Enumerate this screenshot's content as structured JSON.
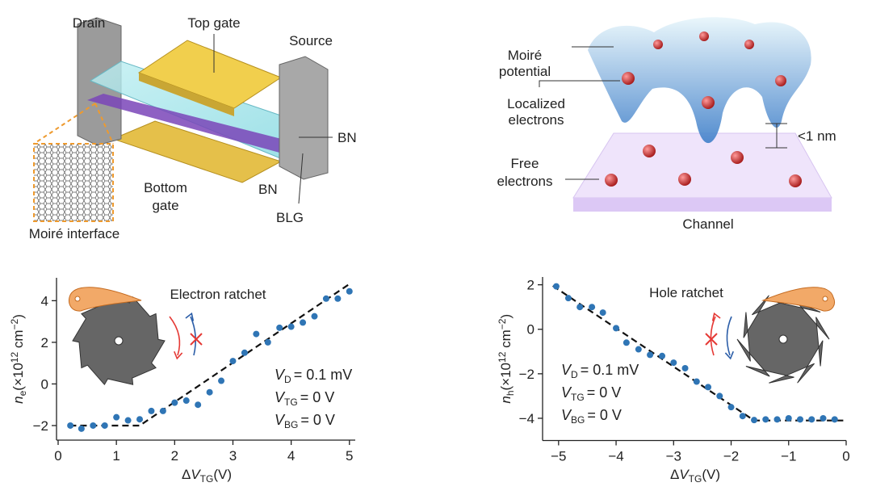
{
  "diagrams": {
    "device": {
      "drain": "Drain",
      "top_gate": "Top gate",
      "source": "Source",
      "bn_upper": "BN",
      "bn_lower": "BN",
      "blg": "BLG",
      "bottom_gate": [
        "Bottom",
        "gate"
      ],
      "moire_interface": "Moiré interface"
    },
    "potential": {
      "moire_potential": [
        "Moiré",
        "potential"
      ],
      "localized_electrons": [
        "Localized",
        "electrons"
      ],
      "free_electrons": [
        "Free",
        "electrons"
      ],
      "spacing": "<1 nm",
      "channel": "Channel"
    }
  },
  "chart_data": [
    {
      "type": "scatter",
      "annotation": "Electron ratchet",
      "conditions": [
        [
          "V",
          "D",
          "= 0.1 mV"
        ],
        [
          "V",
          "TG",
          "= 0 V"
        ],
        [
          "V",
          "BG",
          "= 0 V"
        ]
      ],
      "xlabel": [
        "Δ",
        "V",
        "TG",
        "(V)"
      ],
      "ylabel": [
        "n",
        "e",
        "(×10",
        "12",
        " cm",
        "−2",
        ")"
      ],
      "xlim": [
        0,
        5.1
      ],
      "ylim": [
        -2.7,
        5.1
      ],
      "xticks": [
        0,
        1,
        2,
        3,
        4,
        5
      ],
      "yticks": [
        {
          "value": -2,
          "label": "−2"
        },
        0,
        2,
        4
      ],
      "points": {
        "color": "#2f75b5",
        "x": [
          0.21,
          0.4,
          0.6,
          0.8,
          1.0,
          1.2,
          1.4,
          1.6,
          1.8,
          2.0,
          2.2,
          2.4,
          2.6,
          2.8,
          3.0,
          3.2,
          3.4,
          3.6,
          3.8,
          4.0,
          4.2,
          4.4,
          4.6,
          4.8,
          5.0
        ],
        "y": [
          -2.0,
          -2.15,
          -2.0,
          -2.0,
          -1.6,
          -1.75,
          -1.7,
          -1.3,
          -1.3,
          -0.9,
          -0.8,
          -1.0,
          -0.4,
          0.15,
          1.1,
          1.5,
          2.4,
          2.0,
          2.7,
          2.75,
          2.95,
          3.25,
          4.1,
          4.1,
          4.45
        ]
      },
      "fit": {
        "color": "#111",
        "x": [
          0.2,
          1.4,
          5.0
        ],
        "y": [
          -2.0,
          -2.0,
          4.8
        ]
      }
    },
    {
      "type": "scatter",
      "annotation": "Hole ratchet",
      "conditions": [
        [
          "V",
          "D",
          "= 0.1 mV"
        ],
        [
          "V",
          "TG",
          "= 0 V"
        ],
        [
          "V",
          "BG",
          "= 0 V"
        ]
      ],
      "xlabel": [
        "Δ",
        "V",
        "TG",
        "(V)"
      ],
      "ylabel": [
        "n",
        "h",
        "(×10",
        "12",
        " cm",
        "−2",
        ")"
      ],
      "xlim": [
        -5.25,
        0
      ],
      "ylim": [
        -5,
        2.35
      ],
      "xticks": [
        {
          "value": -5,
          "label": "−5"
        },
        {
          "value": -4,
          "label": "−4"
        },
        {
          "value": -3,
          "label": "−3"
        },
        {
          "value": -2,
          "label": "−2"
        },
        {
          "value": -1,
          "label": "−1"
        },
        0
      ],
      "yticks": [
        {
          "value": -4,
          "label": "−4"
        },
        {
          "value": -2,
          "label": "−2"
        },
        0,
        2
      ],
      "points": {
        "color": "#2f75b5",
        "x": [
          -5.04,
          -4.83,
          -4.63,
          -4.42,
          -4.23,
          -4.0,
          -3.82,
          -3.61,
          -3.41,
          -3.2,
          -3.0,
          -2.8,
          -2.6,
          -2.4,
          -2.2,
          -2.0,
          -1.8,
          -1.6,
          -1.4,
          -1.2,
          -1.0,
          -0.8,
          -0.6,
          -0.4,
          -0.2
        ],
        "y": [
          1.93,
          1.4,
          1.0,
          1.0,
          0.75,
          0.05,
          -0.6,
          -0.9,
          -1.15,
          -1.2,
          -1.5,
          -1.75,
          -2.35,
          -2.6,
          -3.0,
          -3.5,
          -3.9,
          -4.08,
          -4.05,
          -4.05,
          -4.0,
          -4.05,
          -4.05,
          -4.0,
          -4.05
        ]
      },
      "fit": {
        "color": "#111",
        "x": [
          -5.1,
          -1.6,
          -0.05
        ],
        "y": [
          1.95,
          -4.1,
          -4.1
        ]
      }
    }
  ]
}
